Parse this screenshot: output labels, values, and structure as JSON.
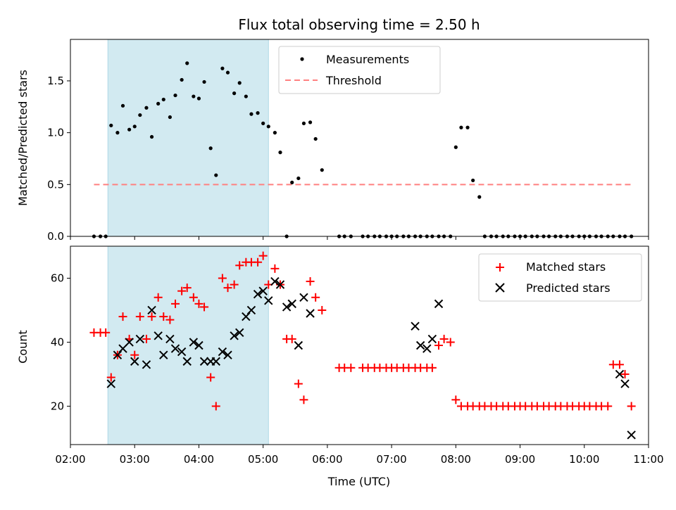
{
  "chart_data": [
    {
      "type": "scatter",
      "title": "Flux total observing time = 2.50 h",
      "xlabel": "",
      "ylabel": "Matched/Predicted stars",
      "xlim": [
        "02:00",
        "11:00"
      ],
      "ylim": [
        0,
        1.9
      ],
      "yticks": [
        0.0,
        0.5,
        1.0,
        1.5
      ],
      "yticklabels": [
        "0.0",
        "0.5",
        "1.0",
        "1.5"
      ],
      "shaded_range": [
        "02:35",
        "05:05"
      ],
      "shaded_color": "#add8e6",
      "legend_position": "top-center",
      "series": [
        {
          "name": "Measurements",
          "marker": "dot",
          "color": "#000000",
          "x": [
            "02:22",
            "02:28",
            "02:33",
            "02:38",
            "02:44",
            "02:49",
            "02:55",
            "03:00",
            "03:05",
            "03:11",
            "03:16",
            "03:22",
            "03:27",
            "03:33",
            "03:38",
            "03:44",
            "03:49",
            "03:55",
            "04:00",
            "04:05",
            "04:11",
            "04:16",
            "04:22",
            "04:27",
            "04:33",
            "04:38",
            "04:44",
            "04:49",
            "04:55",
            "05:00",
            "05:05",
            "05:11",
            "05:16",
            "05:22",
            "05:27",
            "05:33",
            "05:38",
            "05:44",
            "05:49",
            "05:55",
            "06:11",
            "06:16",
            "06:22",
            "06:33",
            "06:38",
            "06:44",
            "06:49",
            "06:55",
            "07:00",
            "07:05",
            "07:11",
            "07:16",
            "07:22",
            "07:27",
            "07:33",
            "07:38",
            "07:44",
            "07:49",
            "07:55",
            "08:00",
            "08:05",
            "08:11",
            "08:16",
            "08:22",
            "08:27",
            "08:33",
            "08:38",
            "08:44",
            "08:49",
            "08:55",
            "09:00",
            "09:05",
            "09:11",
            "09:16",
            "09:22",
            "09:27",
            "09:33",
            "09:38",
            "09:44",
            "09:49",
            "09:55",
            "10:00",
            "10:05",
            "10:11",
            "10:16",
            "10:22",
            "10:27",
            "10:33",
            "10:38",
            "10:44"
          ],
          "y": [
            0,
            0,
            0,
            1.07,
            1.0,
            1.26,
            1.03,
            1.06,
            1.17,
            1.24,
            0.96,
            1.28,
            1.32,
            1.15,
            1.36,
            1.51,
            1.67,
            1.35,
            1.33,
            1.49,
            0.85,
            0.59,
            1.62,
            1.58,
            1.38,
            1.48,
            1.35,
            1.18,
            1.19,
            1.09,
            1.06,
            1.0,
            0.81,
            0,
            0.52,
            0.56,
            1.09,
            1.1,
            0.94,
            0.64,
            0,
            0,
            0,
            0,
            0,
            0,
            0,
            0,
            0,
            0,
            0,
            0,
            0,
            0,
            0,
            0,
            0,
            0,
            0,
            0.86,
            1.05,
            1.05,
            0.54,
            0.38,
            0,
            0,
            0,
            0,
            0,
            0,
            0,
            0,
            0,
            0,
            0,
            0,
            0,
            0,
            0,
            0,
            0,
            0,
            0,
            0,
            0,
            0,
            0,
            0,
            0,
            0
          ]
        },
        {
          "name": "Threshold",
          "style": "dashed",
          "color": "#ff8080",
          "x": [
            "02:22",
            "10:44"
          ],
          "y": [
            0.5,
            0.5
          ]
        }
      ]
    },
    {
      "type": "scatter",
      "title": "",
      "xlabel": "Time (UTC)",
      "ylabel": "Count",
      "xlim": [
        "02:00",
        "11:00"
      ],
      "ylim": [
        8,
        70
      ],
      "xticks": [
        "02:00",
        "03:00",
        "04:00",
        "05:00",
        "06:00",
        "07:00",
        "08:00",
        "09:00",
        "10:00",
        "11:00"
      ],
      "yticks": [
        20,
        40,
        60
      ],
      "yticklabels": [
        "20",
        "40",
        "60"
      ],
      "shaded_range": [
        "02:35",
        "05:05"
      ],
      "shaded_color": "#add8e6",
      "legend_position": "top-right",
      "series": [
        {
          "name": "Matched stars",
          "marker": "plus",
          "color": "#ff0000",
          "x": [
            "02:22",
            "02:28",
            "02:33",
            "02:38",
            "02:44",
            "02:49",
            "02:55",
            "03:00",
            "03:05",
            "03:11",
            "03:16",
            "03:22",
            "03:27",
            "03:33",
            "03:38",
            "03:44",
            "03:49",
            "03:55",
            "04:00",
            "04:05",
            "04:11",
            "04:16",
            "04:22",
            "04:27",
            "04:33",
            "04:38",
            "04:44",
            "04:49",
            "04:55",
            "05:00",
            "05:05",
            "05:11",
            "05:16",
            "05:22",
            "05:27",
            "05:33",
            "05:38",
            "05:44",
            "05:49",
            "05:55",
            "06:11",
            "06:16",
            "06:22",
            "06:33",
            "06:38",
            "06:44",
            "06:49",
            "06:55",
            "07:00",
            "07:05",
            "07:11",
            "07:16",
            "07:22",
            "07:27",
            "07:33",
            "07:38",
            "07:44",
            "07:49",
            "07:55",
            "08:00",
            "08:05",
            "08:11",
            "08:16",
            "08:22",
            "08:27",
            "08:33",
            "08:38",
            "08:44",
            "08:49",
            "08:55",
            "09:00",
            "09:05",
            "09:11",
            "09:16",
            "09:22",
            "09:27",
            "09:33",
            "09:38",
            "09:44",
            "09:49",
            "09:55",
            "10:00",
            "10:05",
            "10:11",
            "10:16",
            "10:22",
            "10:27",
            "10:33",
            "10:38",
            "10:44"
          ],
          "y": [
            43,
            43,
            43,
            29,
            36,
            48,
            41,
            36,
            48,
            41,
            48,
            54,
            48,
            47,
            52,
            56,
            57,
            54,
            52,
            51,
            29,
            20,
            60,
            57,
            58,
            64,
            65,
            65,
            65,
            67,
            58,
            63,
            58,
            41,
            41,
            27,
            22,
            59,
            54,
            50,
            32,
            32,
            32,
            32,
            32,
            32,
            32,
            32,
            32,
            32,
            32,
            32,
            32,
            32,
            32,
            32,
            39,
            41,
            40,
            22,
            20,
            20,
            20,
            20,
            20,
            20,
            20,
            20,
            20,
            20,
            20,
            20,
            20,
            20,
            20,
            20,
            20,
            20,
            20,
            20,
            20,
            20,
            20,
            20,
            20,
            20,
            33,
            33,
            30,
            20
          ]
        },
        {
          "name": "Predicted stars",
          "marker": "x",
          "color": "#000000",
          "x": [
            "02:38",
            "02:44",
            "02:49",
            "02:55",
            "03:00",
            "03:05",
            "03:11",
            "03:16",
            "03:22",
            "03:27",
            "03:33",
            "03:38",
            "03:44",
            "03:49",
            "03:55",
            "04:00",
            "04:05",
            "04:11",
            "04:16",
            "04:22",
            "04:27",
            "04:33",
            "04:38",
            "04:44",
            "04:49",
            "04:55",
            "05:00",
            "05:05",
            "05:11",
            "05:16",
            "05:22",
            "05:27",
            "05:33",
            "05:38",
            "05:44",
            "07:22",
            "07:27",
            "07:33",
            "07:38",
            "07:44",
            "10:33",
            "10:38",
            "10:44"
          ],
          "y": [
            27,
            36,
            38,
            40,
            34,
            41,
            33,
            50,
            42,
            36,
            41,
            38,
            37,
            34,
            40,
            39,
            34,
            34,
            34,
            37,
            36,
            42,
            43,
            48,
            50,
            55,
            56,
            53,
            59,
            58,
            51,
            52,
            39,
            54,
            49,
            45,
            39,
            38,
            41,
            52,
            30,
            27,
            11
          ]
        }
      ]
    }
  ]
}
